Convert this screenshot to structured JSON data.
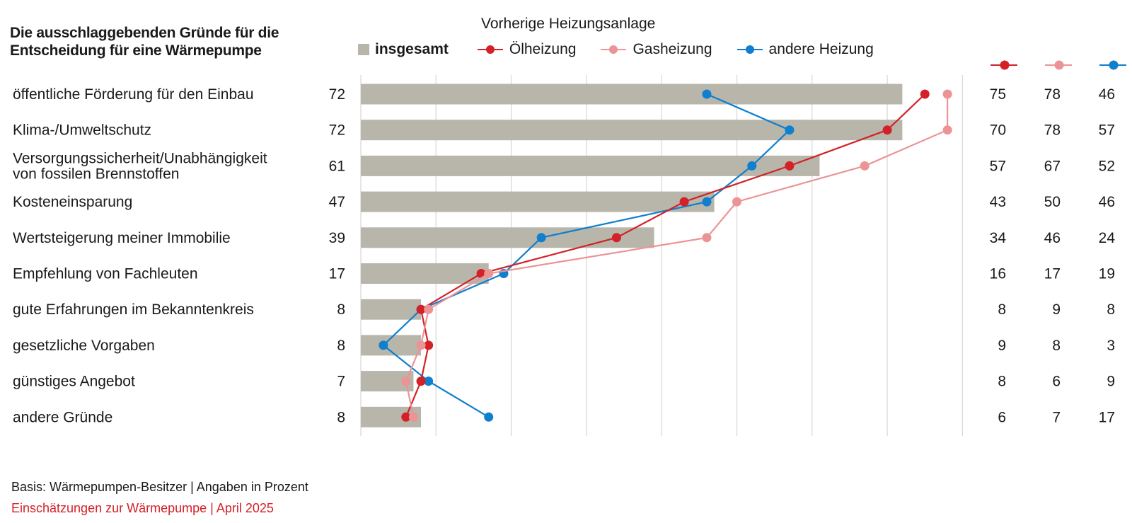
{
  "chart_data": {
    "type": "bar",
    "title": "Die ausschlaggebenden Gründe für die Entscheidung für eine Wärmepumpe",
    "legend_heading": "Vorherige Heizungsanlage",
    "categories": [
      [
        "öffentliche Förderung für den Einbau"
      ],
      [
        "Klima-/Umweltschutz"
      ],
      [
        "Versorgungssicherheit/Unabhängigkeit",
        "von fossilen Brennstoffen"
      ],
      [
        "Kosteneinsparung"
      ],
      [
        "Wertsteigerung meiner Immobilie"
      ],
      [
        "Empfehlung von Fachleuten"
      ],
      [
        "gute Erfahrungen im Bekanntenkreis"
      ],
      [
        "gesetzliche Vorgaben"
      ],
      [
        "günstiges Angebot"
      ],
      [
        "andere Gründe"
      ]
    ],
    "series": [
      {
        "name": "insgesamt",
        "kind": "bar",
        "color": "#b8b5ab",
        "values": [
          72,
          72,
          61,
          47,
          39,
          17,
          8,
          8,
          7,
          8
        ]
      },
      {
        "name": "Ölheizung",
        "kind": "line",
        "color": "#d32127",
        "values": [
          75,
          70,
          57,
          43,
          34,
          16,
          8,
          9,
          8,
          6
        ]
      },
      {
        "name": "Gasheizung",
        "kind": "line",
        "color": "#ec9395",
        "values": [
          78,
          78,
          67,
          50,
          46,
          17,
          9,
          8,
          6,
          7
        ]
      },
      {
        "name": "andere Heizung",
        "kind": "line",
        "color": "#0f7fce",
        "values": [
          46,
          57,
          52,
          46,
          24,
          19,
          8,
          3,
          9,
          17
        ]
      }
    ],
    "xlim": [
      0,
      80
    ],
    "grid": true,
    "legend_position": "top"
  },
  "footer": {
    "basis": "Basis: Wärmepumpen-Besitzer | Angaben in Prozent",
    "source": "Einschätzungen zur Wärmepumpe | April 2025"
  }
}
